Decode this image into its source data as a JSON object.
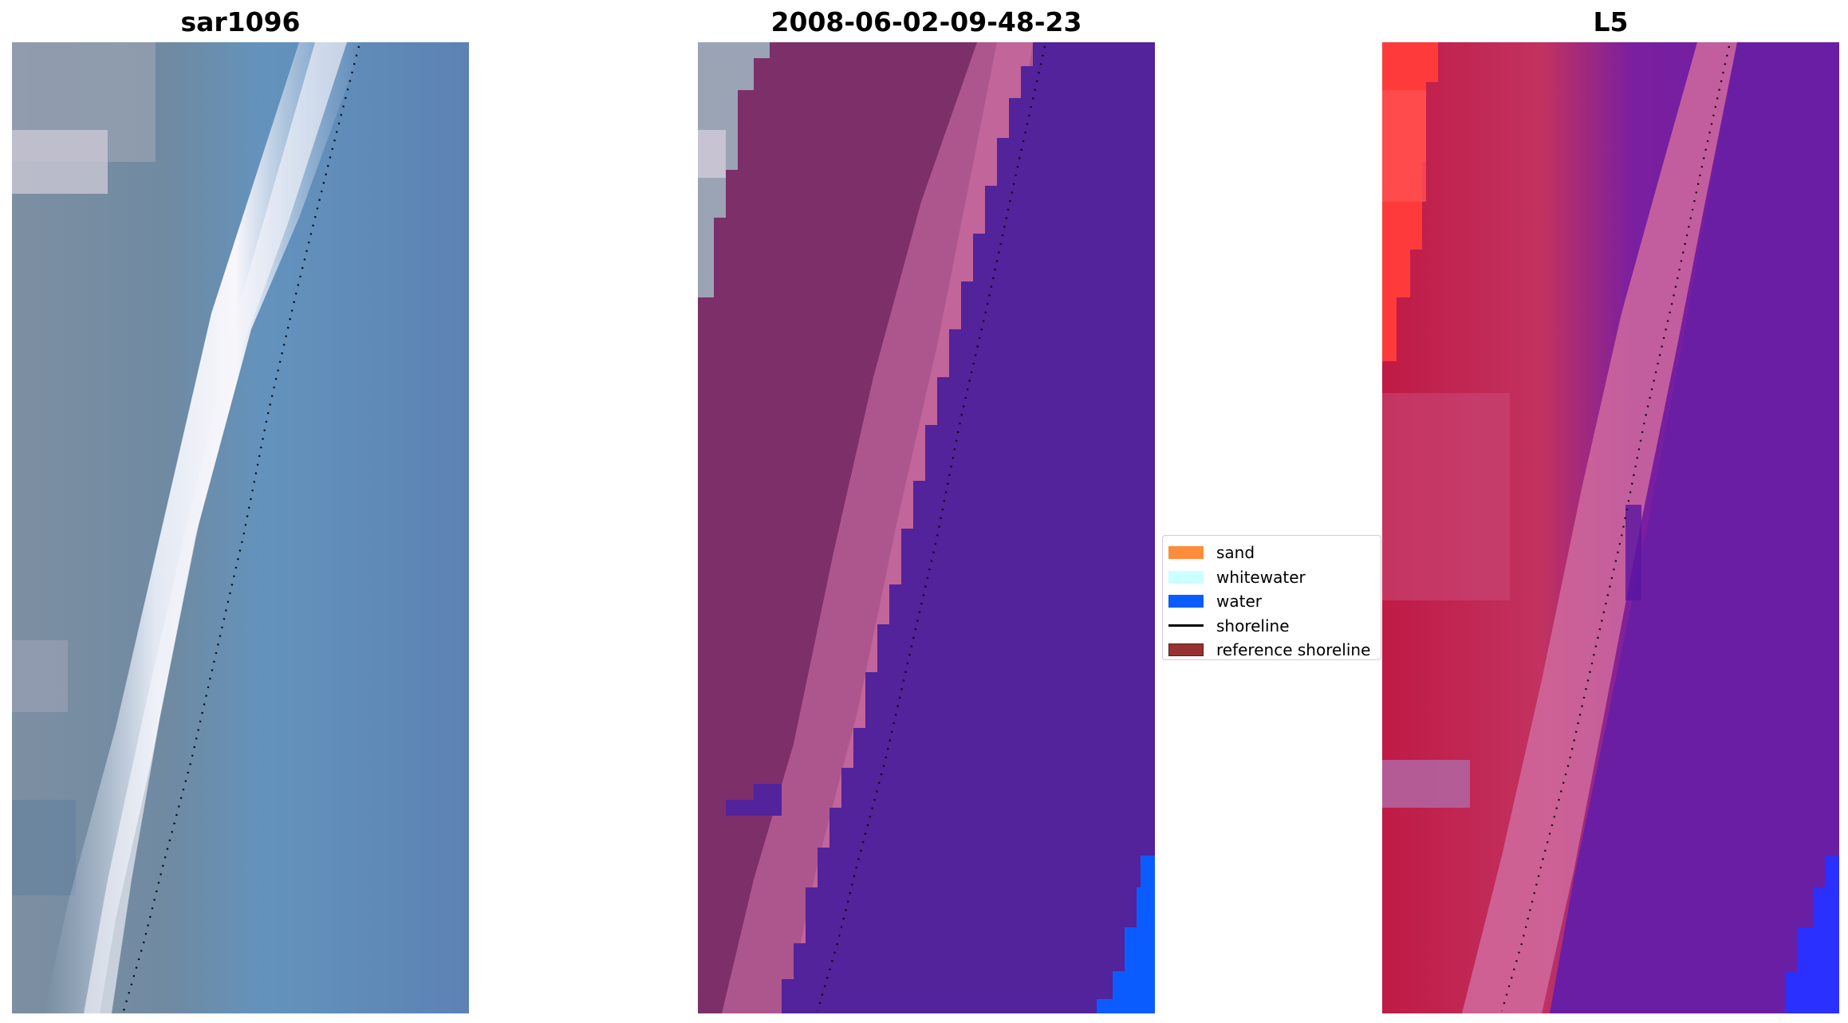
{
  "panels": [
    {
      "title": "sar1096"
    },
    {
      "title": "2008-06-02-09-48-23"
    },
    {
      "title": "L5"
    }
  ],
  "legend": {
    "placement": "center",
    "items": [
      {
        "label": "sand",
        "color": "#ff8c3a"
      },
      {
        "label": "whitewater",
        "color": "#ccffff"
      },
      {
        "label": "water",
        "color": "#0a5cff"
      },
      {
        "label": "shoreline",
        "color": "#000000"
      },
      {
        "label": "reference shoreline",
        "color": "#963232"
      }
    ]
  },
  "colors": {
    "rgb_water": "#5f86b3",
    "rgb_land": "#7c8ea0",
    "rgb_surf": "#e6ecf5",
    "class_land": "#7d2f6a",
    "class_beach": "#b85c94",
    "class_water_overlay": "#52239a",
    "class_water": "#0a5cff",
    "index_land": "#c01a45",
    "index_beach": "#d36a9c",
    "index_water": "#6a1ea4",
    "index_bright": "#ff2020",
    "shoreline_dots": "#000000"
  }
}
